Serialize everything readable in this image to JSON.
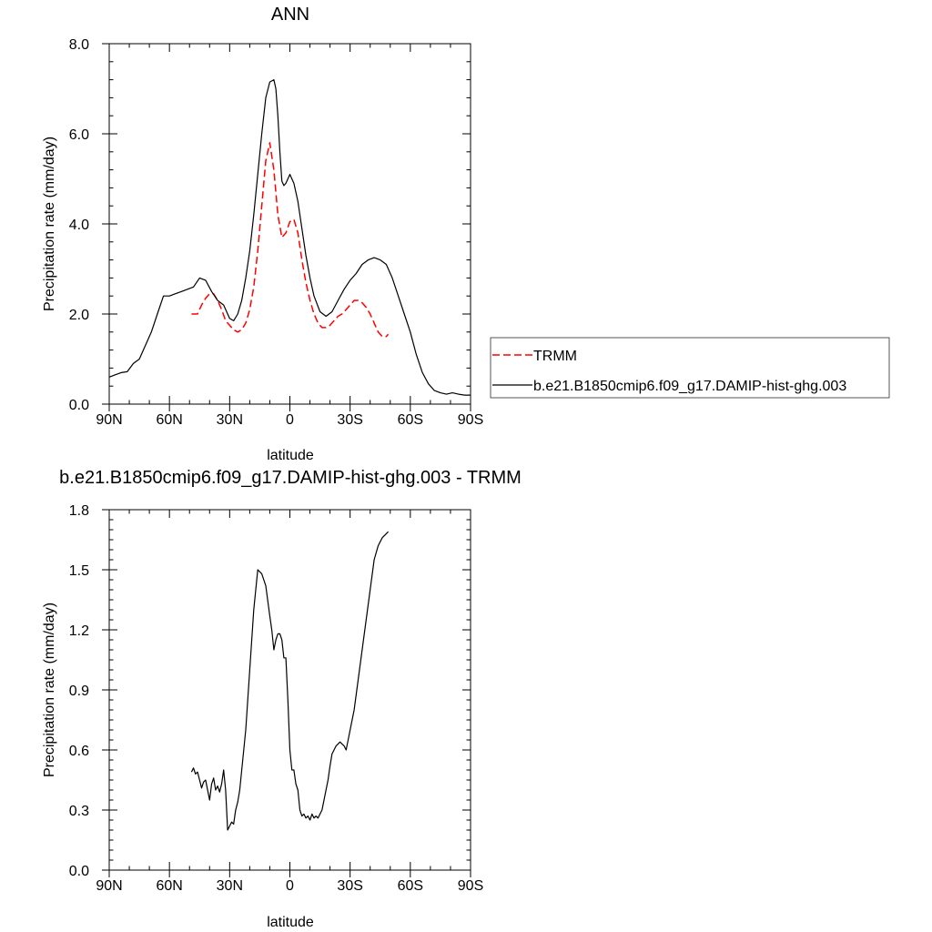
{
  "chart_data": [
    {
      "type": "line",
      "title": "ANN",
      "xlabel": "latitude",
      "ylabel": "Precipitation rate (mm/day)",
      "xlim": [
        90,
        -90
      ],
      "ylim": [
        0,
        8
      ],
      "x_ticks": [
        90,
        60,
        30,
        0,
        -30,
        -60,
        -90
      ],
      "x_tick_labels": [
        "90N",
        "60N",
        "30N",
        "0",
        "30S",
        "60S",
        "90S"
      ],
      "y_ticks": [
        0,
        2,
        4,
        6,
        8
      ],
      "y_tick_labels": [
        "0.0",
        "2.0",
        "4.0",
        "6.0",
        "8.0"
      ],
      "legend_position": "right",
      "series": [
        {
          "name": "TRMM",
          "color": "#ff0000",
          "dash": "dashed",
          "x": [
            49,
            46,
            44,
            42,
            40,
            38,
            36,
            34,
            32,
            30,
            28,
            26,
            24,
            22,
            20,
            18,
            16,
            14,
            12,
            10,
            8,
            6,
            4,
            2,
            0,
            -2,
            -4,
            -6,
            -8,
            -10,
            -12,
            -14,
            -16,
            -18,
            -20,
            -22,
            -24,
            -26,
            -28,
            -30,
            -32,
            -34,
            -36,
            -38,
            -40,
            -42,
            -44,
            -46,
            -48,
            -49
          ],
          "y": [
            2.0,
            2.0,
            2.2,
            2.35,
            2.45,
            2.45,
            2.3,
            2.1,
            1.85,
            1.75,
            1.65,
            1.6,
            1.65,
            1.8,
            2.1,
            2.6,
            3.4,
            4.4,
            5.4,
            5.8,
            5.2,
            4.2,
            3.7,
            3.8,
            4.05,
            4.1,
            3.8,
            3.2,
            2.7,
            2.3,
            2.0,
            1.8,
            1.7,
            1.7,
            1.75,
            1.85,
            1.95,
            2.0,
            2.1,
            2.2,
            2.3,
            2.3,
            2.25,
            2.15,
            2.0,
            1.8,
            1.6,
            1.5,
            1.5,
            1.55
          ]
        },
        {
          "name": "b.e21.B1850cmip6.f09_g17.DAMIP-hist-ghg.003",
          "color": "#000000",
          "dash": "solid",
          "x": [
            90,
            87,
            84,
            81,
            78,
            75,
            72,
            69,
            66,
            63,
            60,
            57,
            54,
            51,
            48,
            45,
            42,
            39,
            36,
            33,
            30,
            28,
            26,
            24,
            22,
            20,
            18,
            16,
            14,
            12,
            10,
            8,
            7,
            6,
            5,
            4,
            3,
            2,
            0,
            -2,
            -4,
            -6,
            -8,
            -10,
            -12,
            -15,
            -18,
            -21,
            -24,
            -27,
            -30,
            -33,
            -36,
            -39,
            -42,
            -45,
            -48,
            -51,
            -54,
            -57,
            -60,
            -63,
            -66,
            -69,
            -72,
            -75,
            -78,
            -81,
            -84,
            -87,
            -90
          ],
          "y": [
            0.6,
            0.65,
            0.7,
            0.72,
            0.9,
            1.0,
            1.3,
            1.6,
            2.0,
            2.4,
            2.4,
            2.45,
            2.5,
            2.55,
            2.6,
            2.8,
            2.75,
            2.5,
            2.3,
            2.2,
            1.9,
            1.85,
            2.0,
            2.3,
            2.8,
            3.4,
            4.2,
            5.1,
            6.0,
            6.8,
            7.15,
            7.2,
            7.0,
            6.4,
            5.6,
            4.95,
            4.85,
            4.9,
            5.1,
            4.9,
            4.5,
            3.9,
            3.3,
            2.8,
            2.4,
            2.05,
            1.95,
            2.05,
            2.3,
            2.55,
            2.75,
            2.9,
            3.1,
            3.2,
            3.25,
            3.2,
            3.1,
            2.8,
            2.4,
            2.0,
            1.6,
            1.1,
            0.7,
            0.45,
            0.3,
            0.25,
            0.22,
            0.25,
            0.22,
            0.2,
            0.2
          ]
        }
      ]
    },
    {
      "type": "line",
      "title": "b.e21.B1850cmip6.f09_g17.DAMIP-hist-ghg.003 - TRMM",
      "xlabel": "latitude",
      "ylabel": "Precipitation rate (mm/day)",
      "xlim": [
        90,
        -90
      ],
      "ylim": [
        0,
        1.8
      ],
      "x_ticks": [
        90,
        60,
        30,
        0,
        -30,
        -60,
        -90
      ],
      "x_tick_labels": [
        "90N",
        "60N",
        "30N",
        "0",
        "30S",
        "60S",
        "90S"
      ],
      "y_ticks": [
        0,
        0.3,
        0.6,
        0.9,
        1.2,
        1.5,
        1.8
      ],
      "y_tick_labels": [
        "0.0",
        "0.3",
        "0.6",
        "0.9",
        "1.2",
        "1.5",
        "1.8"
      ],
      "series": [
        {
          "color": "#000000",
          "dash": "solid",
          "x": [
            49,
            48,
            47,
            46,
            45,
            44,
            43,
            42,
            41,
            40,
            39,
            38,
            37,
            36,
            35,
            34,
            33,
            32,
            31,
            30,
            29,
            28,
            27,
            26,
            25,
            24,
            23,
            22,
            21,
            20,
            18,
            16,
            14,
            12,
            10,
            9,
            8,
            7,
            6,
            5,
            4,
            3,
            2,
            1,
            0,
            -1,
            -2,
            -3,
            -4,
            -5,
            -6,
            -7,
            -8,
            -9,
            -10,
            -11,
            -12,
            -13,
            -14,
            -15,
            -16,
            -17,
            -18,
            -19,
            -20,
            -21,
            -22,
            -23,
            -24,
            -25,
            -26,
            -27,
            -28,
            -30,
            -32,
            -34,
            -36,
            -38,
            -40,
            -42,
            -44,
            -46,
            -48,
            -49
          ],
          "y": [
            0.49,
            0.51,
            0.48,
            0.49,
            0.45,
            0.41,
            0.44,
            0.45,
            0.4,
            0.35,
            0.43,
            0.46,
            0.4,
            0.42,
            0.39,
            0.43,
            0.5,
            0.4,
            0.2,
            0.22,
            0.24,
            0.23,
            0.3,
            0.34,
            0.4,
            0.5,
            0.6,
            0.7,
            0.85,
            1.0,
            1.3,
            1.5,
            1.48,
            1.42,
            1.27,
            1.2,
            1.1,
            1.15,
            1.18,
            1.18,
            1.15,
            1.06,
            1.06,
            0.85,
            0.6,
            0.5,
            0.5,
            0.43,
            0.4,
            0.3,
            0.27,
            0.28,
            0.26,
            0.27,
            0.25,
            0.28,
            0.26,
            0.27,
            0.26,
            0.28,
            0.3,
            0.35,
            0.4,
            0.45,
            0.52,
            0.58,
            0.6,
            0.62,
            0.63,
            0.64,
            0.63,
            0.62,
            0.6,
            0.7,
            0.8,
            0.95,
            1.1,
            1.25,
            1.4,
            1.55,
            1.62,
            1.66,
            1.68,
            1.69
          ]
        }
      ]
    }
  ]
}
